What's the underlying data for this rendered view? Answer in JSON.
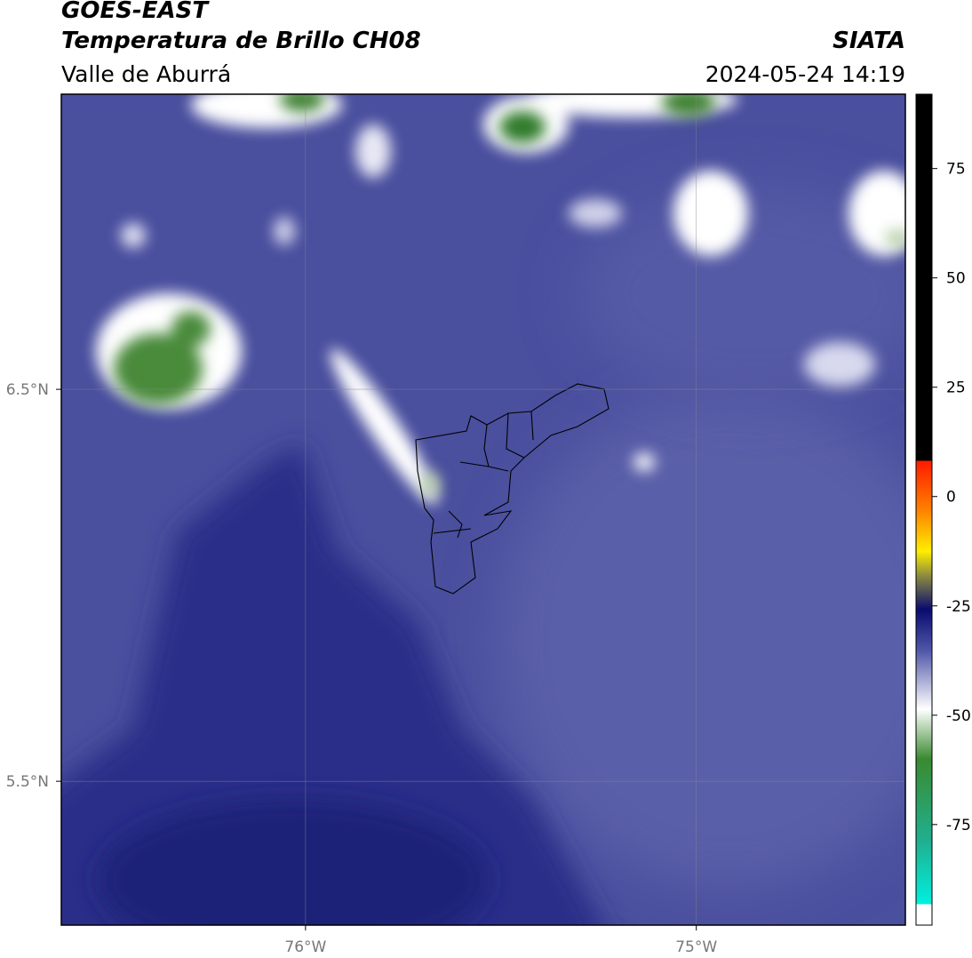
{
  "header": {
    "title": "GOES-EAST",
    "subtitle": "Temperatura de Brillo CH08",
    "region": "Valle de Aburrá",
    "source": "SIATA",
    "datetime": "2024-05-24 14:19"
  },
  "map": {
    "xlim": [
      -76.625,
      -74.465
    ],
    "ylim": [
      5.133,
      7.253
    ],
    "xticks": [
      {
        "value": -76,
        "label": "76°W"
      },
      {
        "value": -75,
        "label": "75°W"
      }
    ],
    "yticks": [
      {
        "value": 6.5,
        "label": "6.5°N"
      },
      {
        "value": 5.5,
        "label": "5.5°N"
      }
    ]
  },
  "colorbar": {
    "lim": [
      -98,
      92
    ],
    "ticks": [
      75,
      50,
      25,
      0,
      -25,
      -50,
      -75
    ]
  }
}
